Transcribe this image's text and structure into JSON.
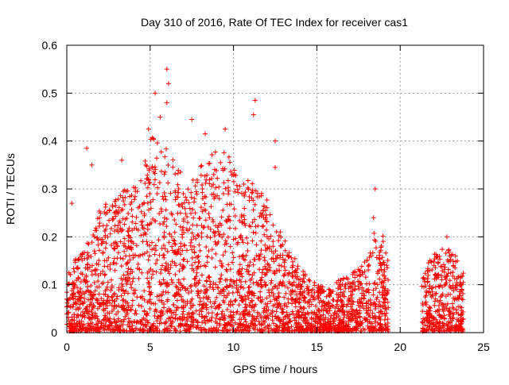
{
  "chart_data": {
    "type": "scatter",
    "title": "Day 310 of 2016, Rate Of TEC Index for receiver cas1",
    "xlabel": "GPS time / hours",
    "ylabel": "ROTI / TECUs",
    "xlim": [
      0,
      25
    ],
    "ylim": [
      0,
      0.6
    ],
    "xticks": [
      "0",
      "5",
      "10",
      "15",
      "20",
      "25"
    ],
    "yticks": [
      "0",
      "0.1",
      "0.2",
      "0.3",
      "0.4",
      "0.5",
      "0.6"
    ],
    "grid": true,
    "legend": "none",
    "marker": "plus",
    "color": "#ff0000",
    "envelope": {
      "x": [
        0.0,
        0.5,
        1.0,
        1.5,
        2.0,
        2.5,
        3.0,
        3.5,
        4.0,
        4.5,
        5.0,
        5.5,
        6.0,
        6.5,
        7.0,
        7.5,
        8.0,
        8.5,
        9.0,
        9.5,
        10.0,
        10.5,
        11.0,
        11.5,
        12.0,
        12.5,
        13.0,
        13.5,
        14.0,
        14.5,
        15.0,
        15.5,
        16.0,
        16.5,
        17.0,
        17.5,
        18.0,
        18.5,
        19.0,
        19.3,
        21.3,
        21.5,
        22.0,
        22.5,
        23.0,
        23.5,
        23.8
      ],
      "y": [
        0.12,
        0.15,
        0.17,
        0.2,
        0.26,
        0.28,
        0.28,
        0.3,
        0.3,
        0.33,
        0.4,
        0.42,
        0.38,
        0.36,
        0.33,
        0.31,
        0.35,
        0.36,
        0.38,
        0.38,
        0.35,
        0.33,
        0.32,
        0.3,
        0.28,
        0.22,
        0.2,
        0.16,
        0.14,
        0.12,
        0.1,
        0.09,
        0.1,
        0.11,
        0.12,
        0.13,
        0.15,
        0.22,
        0.2,
        0.14,
        0.12,
        0.14,
        0.16,
        0.18,
        0.17,
        0.15,
        0.12
      ]
    },
    "peaks": [
      {
        "x": 0.3,
        "y": 0.27
      },
      {
        "x": 1.2,
        "y": 0.385
      },
      {
        "x": 1.5,
        "y": 0.35
      },
      {
        "x": 3.3,
        "y": 0.36
      },
      {
        "x": 4.9,
        "y": 0.425
      },
      {
        "x": 5.3,
        "y": 0.5
      },
      {
        "x": 5.6,
        "y": 0.45
      },
      {
        "x": 6.0,
        "y": 0.55
      },
      {
        "x": 6.1,
        "y": 0.52
      },
      {
        "x": 6.0,
        "y": 0.48
      },
      {
        "x": 7.5,
        "y": 0.445
      },
      {
        "x": 8.3,
        "y": 0.415
      },
      {
        "x": 9.5,
        "y": 0.425
      },
      {
        "x": 11.3,
        "y": 0.485
      },
      {
        "x": 11.2,
        "y": 0.455
      },
      {
        "x": 12.5,
        "y": 0.4
      },
      {
        "x": 12.5,
        "y": 0.345
      },
      {
        "x": 18.5,
        "y": 0.3
      },
      {
        "x": 18.4,
        "y": 0.24
      },
      {
        "x": 22.8,
        "y": 0.2
      }
    ]
  }
}
